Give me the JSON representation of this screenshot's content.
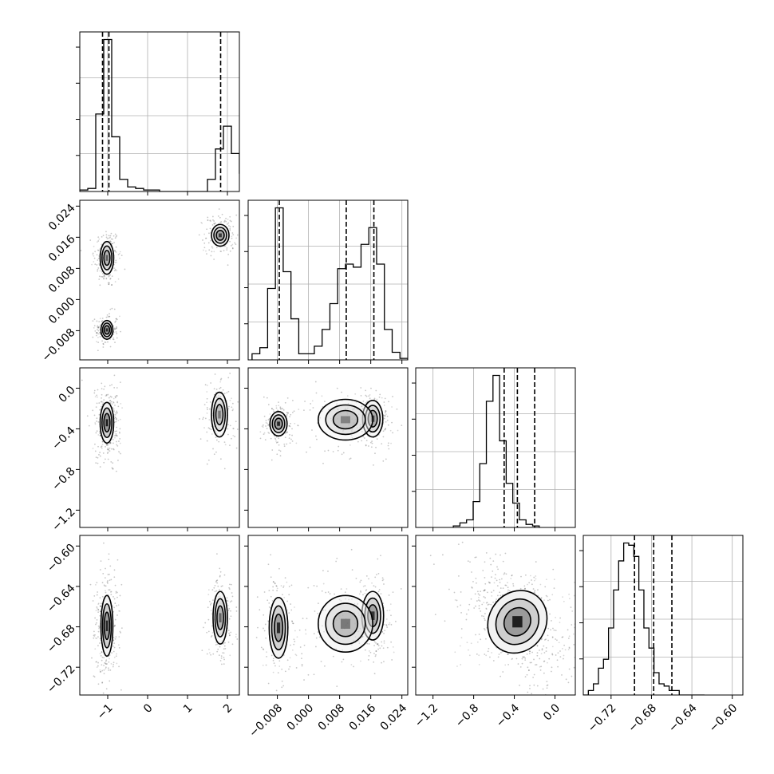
{
  "figure": {
    "background": "#ffffff",
    "line_color": "#000000",
    "grid_color": "#b0b0b0"
  },
  "chart_data": {
    "type": "corner",
    "parameters": [
      {
        "key": "p0",
        "range": [
          -1.7,
          2.3
        ],
        "ticks": [
          {
            "v": -1,
            "label": "−1"
          },
          {
            "v": 0,
            "label": "0"
          },
          {
            "v": 1,
            "label": "1"
          },
          {
            "v": 2,
            "label": "2"
          }
        ],
        "quantiles": [
          -1.13,
          -0.97,
          1.83
        ],
        "hist": {
          "start": -1.7,
          "width": 0.2,
          "counts": [
            0.01,
            0.02,
            0.51,
            1.0,
            0.36,
            0.08,
            0.03,
            0.02,
            0.01,
            0.01,
            0.0,
            0.0,
            0.0,
            0.0,
            0.0,
            0.0,
            0.08,
            0.28,
            0.43,
            0.25,
            0.12
          ]
        }
      },
      {
        "key": "p1",
        "range": [
          -0.0155,
          0.0255
        ],
        "ticks": [
          {
            "v": -0.008,
            "label": "−0.008"
          },
          {
            "v": 0.0,
            "label": "0.000"
          },
          {
            "v": 0.008,
            "label": "0.008"
          },
          {
            "v": 0.016,
            "label": "0.016"
          },
          {
            "v": 0.024,
            "label": "0.024"
          }
        ],
        "quantiles": [
          -0.0075,
          0.0097,
          0.0168
        ],
        "hist": {
          "start": -0.0145,
          "width": 0.002,
          "counts": [
            0.04,
            0.08,
            0.47,
            1.0,
            0.58,
            0.27,
            0.04,
            0.04,
            0.09,
            0.2,
            0.37,
            0.6,
            0.63,
            0.61,
            0.76,
            0.87,
            0.63,
            0.2,
            0.05,
            0.01
          ]
        }
      },
      {
        "key": "p2",
        "range": [
          -1.37,
          0.2
        ],
        "ticks": [
          {
            "v": -1.2,
            "label": "−1.2"
          },
          {
            "v": -0.8,
            "label": "−0.8"
          },
          {
            "v": -0.4,
            "label": "−0.4"
          },
          {
            "v": 0.0,
            "label": "0.0"
          }
        ],
        "quantiles": [
          -0.5,
          -0.37,
          -0.2
        ],
        "hist": {
          "start": -1.0,
          "width": 0.065,
          "counts": [
            0.01,
            0.03,
            0.05,
            0.17,
            0.42,
            0.83,
            1.0,
            0.57,
            0.29,
            0.16,
            0.05,
            0.02,
            0.01
          ]
        }
      },
      {
        "key": "p3",
        "range": [
          -0.7475,
          -0.5895
        ],
        "ticks": [
          {
            "v": -0.72,
            "label": "−0.72"
          },
          {
            "v": -0.68,
            "label": "−0.68"
          },
          {
            "v": -0.64,
            "label": "−0.64"
          },
          {
            "v": -0.6,
            "label": "−0.60"
          }
        ],
        "quantiles": [
          -0.6968,
          -0.6778,
          -0.6598
        ],
        "hist": {
          "start": -0.7475,
          "width": 0.005,
          "counts": [
            0.0,
            0.02,
            0.05,
            0.12,
            0.16,
            0.3,
            0.47,
            0.6,
            0.68,
            0.67,
            0.62,
            0.47,
            0.3,
            0.21,
            0.1,
            0.05,
            0.04,
            0.02,
            0.02,
            0.0,
            0.0,
            0.0,
            0.0,
            0.0
          ]
        }
      }
    ],
    "clusters": [
      {
        "center": [
          -1.02,
          0.0107
        ],
        "sd": [
          0.085,
          0.0021
        ],
        "weight": 0.3,
        "peak": 0.55
      },
      {
        "center": [
          -1.02,
          -0.0078
        ],
        "sd": [
          0.075,
          0.0012
        ],
        "weight": 0.22,
        "peak": 0.95
      },
      {
        "center": [
          1.82,
          0.0165
        ],
        "sd": [
          0.11,
          0.0014
        ],
        "weight": 0.24,
        "peak": 0.8
      },
      {
        "center": [
          -1.02,
          -0.34
        ],
        "sd": [
          0.085,
          0.1
        ],
        "weight": 0.5,
        "peak": 1.0
      },
      {
        "center": [
          1.8,
          -0.26
        ],
        "sd": [
          0.1,
          0.11
        ],
        "weight": 0.25,
        "peak": 0.45
      },
      {
        "center": [
          -0.0077,
          -0.35
        ],
        "sd": [
          0.0011,
          0.06
        ],
        "weight": 0.22,
        "peak": 0.95
      },
      {
        "center": [
          0.0165,
          -0.3
        ],
        "sd": [
          0.0013,
          0.09
        ],
        "weight": 0.22,
        "peak": 0.7
      },
      {
        "center": [
          0.0095,
          -0.31
        ],
        "sd": [
          0.0035,
          0.1
        ],
        "weight": 0.18,
        "peak": 0.4
      },
      {
        "center": [
          -1.02,
          -0.679
        ],
        "sd": [
          0.075,
          0.015
        ],
        "weight": 0.5,
        "peak": 0.95
      },
      {
        "center": [
          1.82,
          -0.671
        ],
        "sd": [
          0.09,
          0.013
        ],
        "weight": 0.25,
        "peak": 0.55
      },
      {
        "center": [
          -0.0077,
          -0.681
        ],
        "sd": [
          0.0012,
          0.015
        ],
        "weight": 0.24,
        "peak": 0.9
      },
      {
        "center": [
          0.0165,
          -0.669
        ],
        "sd": [
          0.0014,
          0.012
        ],
        "weight": 0.22,
        "peak": 0.85
      },
      {
        "center": [
          0.0095,
          -0.677
        ],
        "sd": [
          0.0035,
          0.014
        ],
        "weight": 0.2,
        "peak": 0.45
      },
      {
        "center": [
          -0.37,
          -0.675
        ],
        "sd": [
          0.14,
          0.016
        ],
        "rho": -0.55,
        "weight": 1.0,
        "peak": 1.0
      }
    ]
  }
}
